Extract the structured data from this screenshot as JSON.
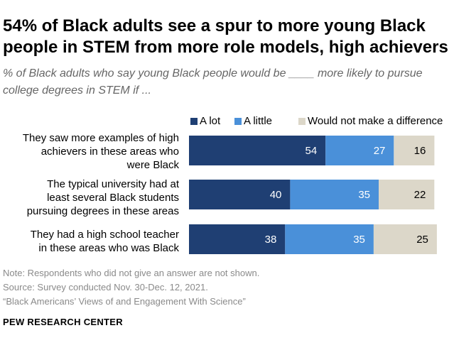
{
  "header": {
    "title": "54% of Black adults see a spur to more young Black people in STEM from more role models, high achievers",
    "subtitle": "% of Black adults who say young Black people would be ____ more likely to pursue college degrees in STEM if ..."
  },
  "colors": {
    "a_lot": "#1f3f73",
    "a_little": "#4a90d9",
    "no_difference": "#dcd7c9"
  },
  "chart_data": {
    "type": "bar",
    "orientation": "horizontal",
    "stacked": true,
    "categories": [
      "They saw more examples of high achievers in these areas who were Black",
      "The typical university had at least several Black students pursuing degrees in these areas",
      "They had a high school teacher in these areas who was Black"
    ],
    "series": [
      {
        "name": "A lot",
        "values": [
          54,
          40,
          38
        ]
      },
      {
        "name": "A little",
        "values": [
          27,
          35,
          35
        ]
      },
      {
        "name": "Would not make a difference",
        "values": [
          16,
          22,
          25
        ]
      }
    ],
    "legend": "top"
  },
  "labels": [
    [
      "They saw more examples of high",
      "achievers in these areas who",
      "were Black"
    ],
    [
      "The typical university had at",
      "least several Black students",
      "pursuing degrees in these areas"
    ],
    [
      "They had a high school teacher",
      "in these areas who was Black"
    ]
  ],
  "footer": {
    "note": "Note: Respondents who did not give an answer are not shown.",
    "source": "Source: Survey conducted Nov. 30-Dec. 12, 2021.",
    "report": "“Black Americans’ Views of and Engagement With Science”",
    "brand": "PEW RESEARCH CENTER"
  }
}
